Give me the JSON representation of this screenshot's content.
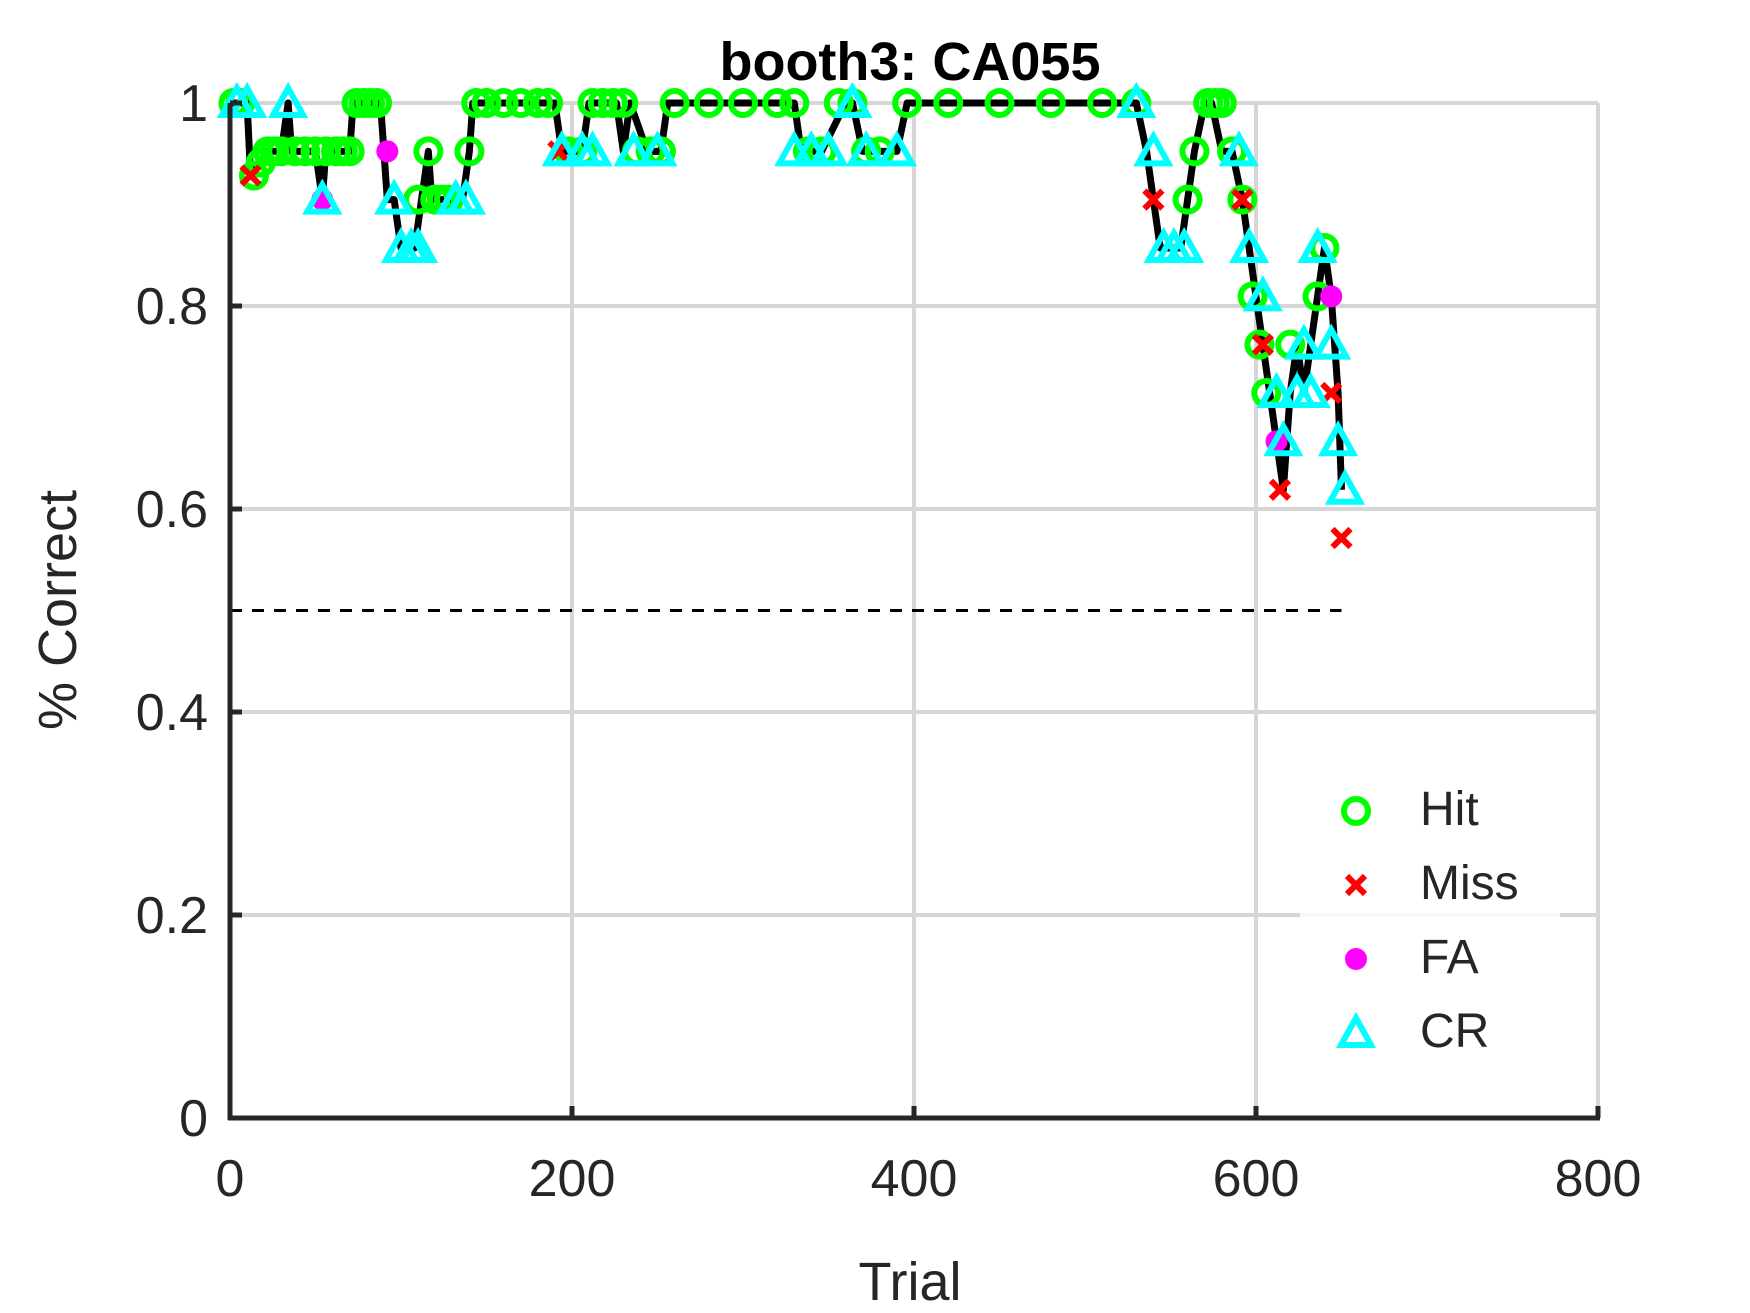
{
  "chart_data": {
    "type": "scatter",
    "title": "booth3: CA055",
    "xlabel": "Trial",
    "ylabel": "% Correct",
    "xlim": [
      0,
      800
    ],
    "ylim": [
      0,
      1
    ],
    "xticks": [
      0,
      200,
      400,
      600,
      800
    ],
    "yticks": [
      0,
      0.2,
      0.4,
      0.6,
      0.8,
      1
    ],
    "grid": true,
    "legend_position": "bottom-right",
    "chance_line": {
      "y": 0.5,
      "x_range": [
        0,
        650
      ],
      "style": "dashed"
    },
    "line_x": [
      0,
      10,
      12,
      14,
      18,
      22,
      30,
      34,
      36,
      50,
      54,
      56,
      70,
      72,
      76,
      88,
      90,
      92,
      96,
      100,
      104,
      108,
      112,
      116,
      118,
      136,
      140,
      142,
      150,
      180,
      190,
      194,
      206,
      210,
      220,
      226,
      230,
      234,
      244,
      252,
      256,
      330,
      334,
      340,
      346,
      360,
      364,
      370,
      376,
      390,
      396,
      530,
      536,
      540,
      544,
      550,
      556,
      560,
      564,
      570,
      574,
      580,
      586,
      592,
      596,
      600,
      604,
      608,
      612,
      616,
      620,
      624,
      628,
      632,
      636,
      640,
      644,
      648,
      650
    ],
    "line_y": [
      1.0,
      1.0,
      0.9286,
      0.9333,
      0.9412,
      0.9524,
      0.9524,
      1.0,
      0.9524,
      0.9524,
      0.9048,
      0.9524,
      0.9524,
      1.0,
      1.0,
      1.0,
      0.9524,
      0.9048,
      0.9048,
      0.8571,
      0.8571,
      0.8571,
      0.9048,
      0.9524,
      0.9048,
      0.9048,
      0.9524,
      1.0,
      1.0,
      1.0,
      1.0,
      0.9524,
      0.9524,
      1.0,
      1.0,
      1.0,
      0.9524,
      1.0,
      0.9524,
      0.9524,
      1.0,
      1.0,
      0.9524,
      0.9524,
      0.9524,
      1.0,
      1.0,
      0.9524,
      0.9524,
      0.9524,
      1.0,
      1.0,
      0.9524,
      0.9048,
      0.8571,
      0.8571,
      0.8571,
      0.9048,
      0.9524,
      1.0,
      1.0,
      0.9524,
      0.9524,
      0.9048,
      0.8571,
      0.8095,
      0.7619,
      0.7143,
      0.6667,
      0.619,
      0.7143,
      0.7619,
      0.7143,
      0.7619,
      0.8095,
      0.8571,
      0.8095,
      0.7143,
      0.619
    ],
    "series": [
      {
        "name": "Hit",
        "color": "#00ff00",
        "marker": "circle-open",
        "points": [
          [
            2,
            1.0
          ],
          [
            6,
            1.0
          ],
          [
            14,
            0.9286
          ],
          [
            18,
            0.9412
          ],
          [
            22,
            0.9524
          ],
          [
            26,
            0.9524
          ],
          [
            30,
            0.9524
          ],
          [
            38,
            0.9524
          ],
          [
            44,
            0.9524
          ],
          [
            50,
            0.9524
          ],
          [
            56,
            0.9524
          ],
          [
            62,
            0.9524
          ],
          [
            66,
            0.9524
          ],
          [
            70,
            0.9524
          ],
          [
            74,
            1.0
          ],
          [
            78,
            1.0
          ],
          [
            82,
            1.0
          ],
          [
            86,
            1.0
          ],
          [
            110,
            0.9048
          ],
          [
            116,
            0.9524
          ],
          [
            120,
            0.9048
          ],
          [
            124,
            0.9048
          ],
          [
            128,
            0.9048
          ],
          [
            140,
            0.9524
          ],
          [
            144,
            1.0
          ],
          [
            150,
            1.0
          ],
          [
            160,
            1.0
          ],
          [
            170,
            1.0
          ],
          [
            180,
            1.0
          ],
          [
            186,
            1.0
          ],
          [
            198,
            0.9524
          ],
          [
            206,
            0.9524
          ],
          [
            212,
            1.0
          ],
          [
            218,
            1.0
          ],
          [
            224,
            1.0
          ],
          [
            230,
            1.0
          ],
          [
            238,
            0.9524
          ],
          [
            246,
            0.9524
          ],
          [
            252,
            0.9524
          ],
          [
            260,
            1.0
          ],
          [
            280,
            1.0
          ],
          [
            300,
            1.0
          ],
          [
            320,
            1.0
          ],
          [
            330,
            1.0
          ],
          [
            338,
            0.9524
          ],
          [
            346,
            0.9524
          ],
          [
            356,
            1.0
          ],
          [
            364,
            1.0
          ],
          [
            372,
            0.9524
          ],
          [
            380,
            0.9524
          ],
          [
            396,
            1.0
          ],
          [
            420,
            1.0
          ],
          [
            450,
            1.0
          ],
          [
            480,
            1.0
          ],
          [
            510,
            1.0
          ],
          [
            530,
            1.0
          ],
          [
            560,
            0.9048
          ],
          [
            564,
            0.9524
          ],
          [
            572,
            1.0
          ],
          [
            576,
            1.0
          ],
          [
            580,
            1.0
          ],
          [
            586,
            0.9524
          ],
          [
            592,
            0.9048
          ],
          [
            598,
            0.8095
          ],
          [
            602,
            0.7619
          ],
          [
            606,
            0.7143
          ],
          [
            620,
            0.7619
          ],
          [
            636,
            0.8095
          ],
          [
            640,
            0.8571
          ]
        ]
      },
      {
        "name": "Miss",
        "color": "#ff0000",
        "marker": "x",
        "points": [
          [
            12,
            0.9286
          ],
          [
            192,
            0.9524
          ],
          [
            540,
            0.9048
          ],
          [
            592,
            0.9048
          ],
          [
            604,
            0.7619
          ],
          [
            614,
            0.619
          ],
          [
            644,
            0.7143
          ],
          [
            650,
            0.5714
          ]
        ]
      },
      {
        "name": "FA",
        "color": "#ff00ff",
        "marker": "filled-circle",
        "points": [
          [
            54,
            0.9048
          ],
          [
            92,
            0.9524
          ],
          [
            612,
            0.6667
          ],
          [
            644,
            0.8095
          ]
        ]
      },
      {
        "name": "CR",
        "color": "#00ffff",
        "marker": "triangle-open",
        "points": [
          [
            4,
            1.0
          ],
          [
            10,
            1.0
          ],
          [
            34,
            1.0
          ],
          [
            54,
            0.9048
          ],
          [
            96,
            0.9048
          ],
          [
            100,
            0.8571
          ],
          [
            106,
            0.8571
          ],
          [
            110,
            0.8571
          ],
          [
            132,
            0.9048
          ],
          [
            138,
            0.9048
          ],
          [
            194,
            0.9524
          ],
          [
            206,
            0.9524
          ],
          [
            212,
            0.9524
          ],
          [
            236,
            0.9524
          ],
          [
            250,
            0.9524
          ],
          [
            330,
            0.9524
          ],
          [
            340,
            0.9524
          ],
          [
            350,
            0.9524
          ],
          [
            364,
            1.0
          ],
          [
            372,
            0.9524
          ],
          [
            390,
            0.9524
          ],
          [
            530,
            1.0
          ],
          [
            540,
            0.9524
          ],
          [
            546,
            0.8571
          ],
          [
            552,
            0.8571
          ],
          [
            558,
            0.8571
          ],
          [
            590,
            0.9524
          ],
          [
            596,
            0.8571
          ],
          [
            604,
            0.8095
          ],
          [
            612,
            0.7143
          ],
          [
            616,
            0.6667
          ],
          [
            624,
            0.7143
          ],
          [
            628,
            0.7619
          ],
          [
            632,
            0.7143
          ],
          [
            636,
            0.8571
          ],
          [
            644,
            0.7619
          ],
          [
            648,
            0.6667
          ],
          [
            652,
            0.619
          ]
        ]
      }
    ]
  }
}
